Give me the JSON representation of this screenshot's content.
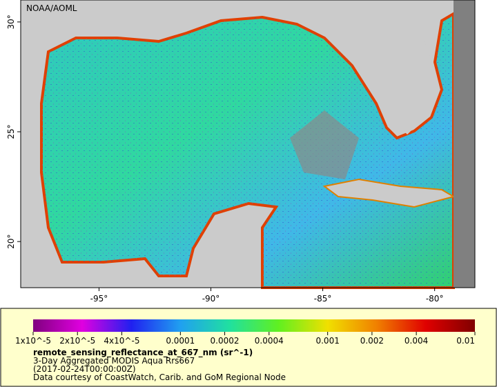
{
  "map": {
    "credit": "NOAA/AOML",
    "xlim": [
      -98.5,
      -78.2
    ],
    "ylim": [
      17.9,
      31.0
    ],
    "xticks": [
      {
        "value": -95,
        "label": "-95°"
      },
      {
        "value": -90,
        "label": "-90°"
      },
      {
        "value": -85,
        "label": "-85°"
      },
      {
        "value": -80,
        "label": "-80°"
      }
    ],
    "yticks": [
      {
        "value": 20,
        "label": "20°"
      },
      {
        "value": 25,
        "label": "25°"
      },
      {
        "value": 30,
        "label": "30°"
      }
    ]
  },
  "legend": {
    "colorbar": {
      "log_scale": true,
      "lim": [
        1e-05,
        0.01
      ],
      "colors": [
        "#80007f",
        "#e000e0",
        "#2020f0",
        "#20a0f0",
        "#20e0a0",
        "#60f020",
        "#f0e000",
        "#f08000",
        "#e00000",
        "#800000"
      ],
      "ticks": [
        {
          "value": 1e-05,
          "label": "1x10^-5"
        },
        {
          "value": 2e-05,
          "label": "2x10^-5"
        },
        {
          "value": 4e-05,
          "label": "4x10^-5"
        },
        0.0001,
        0.0002,
        0.0004,
        0.001,
        0.002,
        0.004,
        0.01
      ]
    },
    "variable": "remote_sensing_reflectance_at_667_nm (sr^-1)",
    "description": "3-Day Aggregated MODIS Aqua Rrs667",
    "time": "(2017-02-24T00:00:00Z)",
    "courtesy": "Data courtesy of CoastWatch, Carib. and GoM Regional Node"
  }
}
